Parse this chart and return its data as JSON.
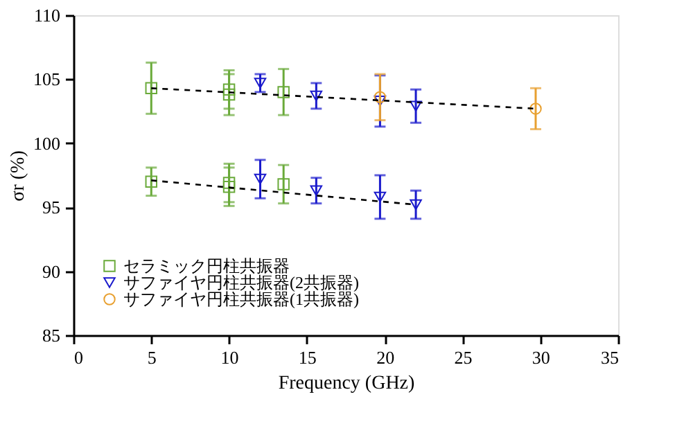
{
  "chart_data": {
    "type": "scatter",
    "xlabel": "Frequency (GHz)",
    "ylabel": "σr (%)",
    "xlim": [
      0,
      35
    ],
    "xticks": [
      0,
      5,
      10,
      15,
      20,
      25,
      30,
      35
    ],
    "ylim": [
      85,
      110
    ],
    "yticks": [
      85,
      90,
      95,
      100,
      105,
      110
    ],
    "grid": false,
    "legend": "bottom left",
    "series": [
      {
        "name": "セラミック円柱共振器",
        "color": "#6aaa3a",
        "marker": "square",
        "x": [
          5,
          10,
          10,
          13.5,
          5,
          10,
          10,
          13.5
        ],
        "values": [
          104.3,
          104.2,
          103.8,
          104.0,
          97.0,
          96.9,
          96.6,
          96.8
        ],
        "errors": [
          2.0,
          1.5,
          1.6,
          1.8,
          1.1,
          1.5,
          1.5,
          1.5
        ]
      },
      {
        "name": "サファイヤ円柱共振器(2共振器)",
        "color": "#1a1acc",
        "marker": "triangle",
        "x": [
          12,
          15.6,
          19.7,
          22,
          12,
          15.6,
          19.7,
          22
        ],
        "values": [
          104.7,
          103.7,
          103.3,
          102.9,
          97.2,
          96.3,
          95.8,
          95.2
        ],
        "errors": [
          0.7,
          1.0,
          2.0,
          1.3,
          1.5,
          1.0,
          1.7,
          1.1
        ]
      },
      {
        "name": "サファイヤ円柱共振器(1共振器)",
        "color": "#e8a030",
        "marker": "circle",
        "x": [
          19.7,
          29.7
        ],
        "values": [
          103.6,
          102.7
        ],
        "errors": [
          1.8,
          1.6
        ]
      },
      {
        "type": "line",
        "color": "#000000",
        "line_style": "dashed",
        "x": [
          5,
          29.7
        ],
        "values": [
          104.3,
          102.7
        ]
      },
      {
        "type": "line",
        "color": "#000000",
        "line_style": "dashed",
        "x": [
          5,
          22
        ],
        "values": [
          97.1,
          95.2
        ]
      }
    ]
  }
}
